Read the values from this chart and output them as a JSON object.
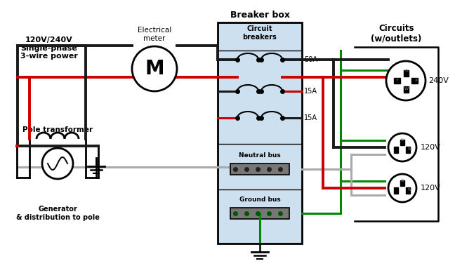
{
  "title": "Breaker box",
  "subtitle_left": "120V/240V\nSingle-phase\n3-wire power",
  "label_meter": "Electrical\nmeter",
  "label_transformer": "Pole transformer",
  "label_generator": "Generator\n& distribution to pole",
  "label_breakers": "Circuit\nbreakers",
  "label_circuits": "Circuits\n(w/outlets)",
  "label_neutral": "Neutral bus",
  "label_ground": "Ground bus",
  "label_50A": "50A",
  "label_15A_1": "15A",
  "label_15A_2": "15A",
  "label_240V": "240V",
  "label_120V_1": "120V",
  "label_120V_2": "120V",
  "bg_color": "#ffffff",
  "box_color": "#cce0f0",
  "wire_black": "#1a1a1a",
  "wire_red": "#cc0000",
  "wire_green": "#008800",
  "wire_gray": "#aaaaaa"
}
